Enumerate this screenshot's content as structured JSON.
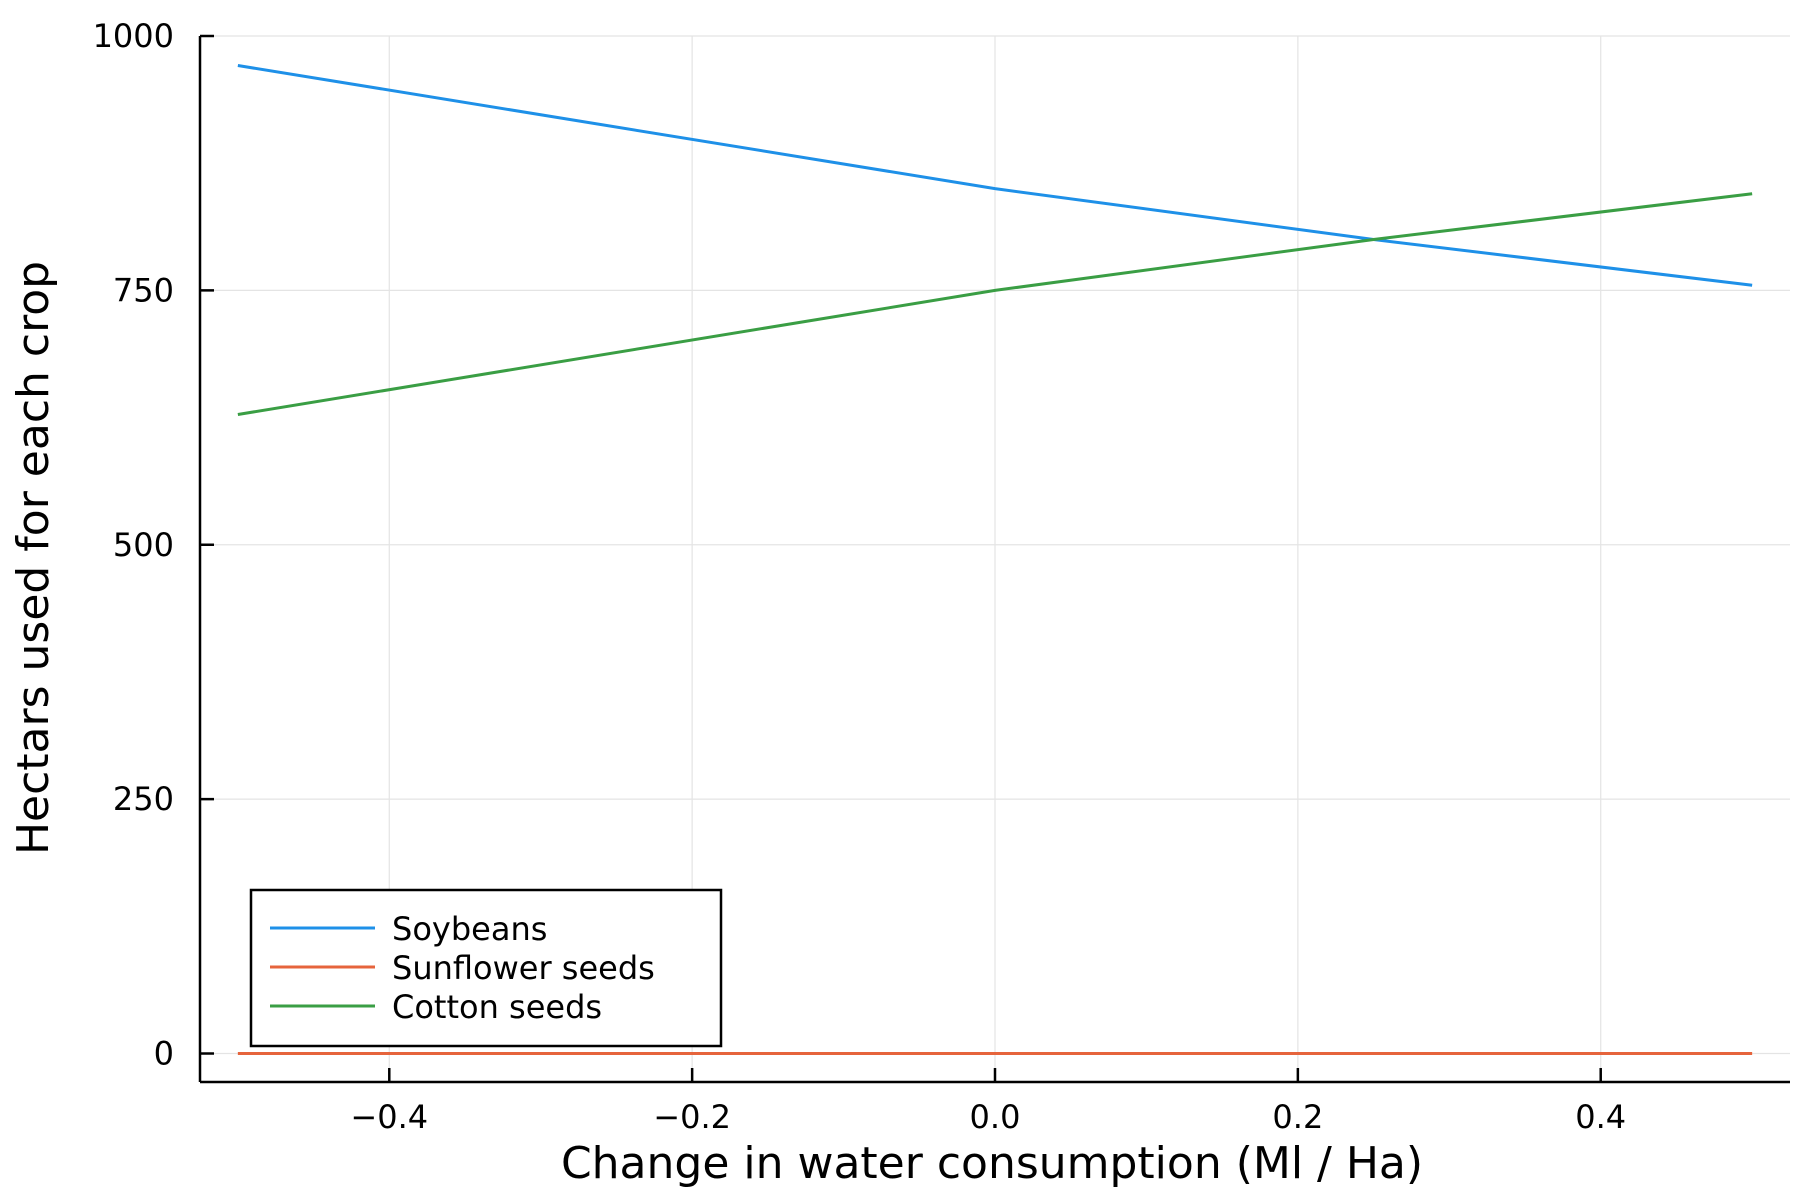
{
  "chart_data": {
    "type": "line",
    "title": "",
    "xlabel": "Change in water consumption (Ml / Ha)",
    "ylabel": "Hectars used for each crop",
    "xlim": [
      -0.525,
      0.525
    ],
    "ylim": [
      -28,
      1000
    ],
    "xticks": [
      -0.4,
      -0.2,
      0.0,
      0.2,
      0.4
    ],
    "xtick_labels": [
      "−0.4",
      "−0.2",
      "0.0",
      "0.2",
      "0.4"
    ],
    "yticks": [
      0,
      250,
      500,
      750,
      1000
    ],
    "ytick_labels": [
      "0",
      "250",
      "500",
      "750",
      "1000"
    ],
    "grid": true,
    "legend_position": "bottom-left",
    "series": [
      {
        "name": "Soybeans",
        "color": "#1e90e8",
        "x": [
          -0.5,
          0.0,
          0.25,
          0.5
        ],
        "y": [
          971,
          850,
          800,
          755
        ]
      },
      {
        "name": "Sunflower seeds",
        "color": "#e6643c",
        "x": [
          -0.5,
          0.0,
          0.5
        ],
        "y": [
          0,
          0,
          0
        ]
      },
      {
        "name": "Cotton seeds",
        "color": "#3a9e44",
        "x": [
          -0.5,
          0.0,
          0.25,
          0.5
        ],
        "y": [
          628,
          750,
          800,
          845
        ]
      }
    ]
  }
}
